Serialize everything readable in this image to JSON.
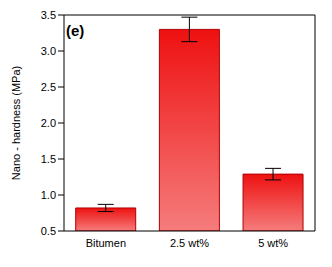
{
  "chart_data": {
    "type": "bar",
    "title": "(e)",
    "y_label": "Nano - hardness (MPa)",
    "categories": [
      "Bitumen",
      "2.5 wt%",
      "5 wt%"
    ],
    "values": [
      0.82,
      3.3,
      1.29
    ],
    "errors": [
      0.05,
      0.17,
      0.08
    ],
    "color": "#ee1111",
    "ylim": [
      0.5,
      3.5
    ],
    "yticks": [
      {
        "value": 0.5,
        "label": "0.5"
      },
      {
        "value": 1,
        "label": "1.0"
      },
      {
        "value": 1.5,
        "label": "1.5"
      },
      {
        "value": 2,
        "label": "2.0"
      },
      {
        "value": 2.5,
        "label": "2.5"
      },
      {
        "value": 3,
        "label": "3.0"
      },
      {
        "value": 3.5,
        "label": "3.5"
      }
    ],
    "grid": false
  }
}
